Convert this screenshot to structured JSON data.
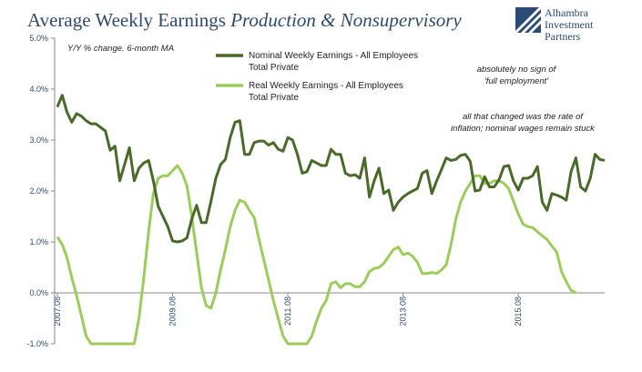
{
  "title": {
    "main": "Average Weekly Earnings ",
    "italic": "Production & Nonsupervisory"
  },
  "logo": {
    "line1": "Alhambra",
    "line2": "Investment",
    "line3": "Partners"
  },
  "notes": {
    "subtitle": "Y/Y % change. 6-month MA",
    "note1_line1": "absolutely no sign of",
    "note1_line2": "'full employment'",
    "note2_line1": "all that changed was the rate of",
    "note2_line2": "inflation; nominal wages remain stuck"
  },
  "colors": {
    "nominal": "#4a6a2a",
    "real": "#9ccd5c",
    "axis_text": "#2f4a6b",
    "logo": "#2b4a75"
  },
  "chart_data": {
    "type": "line",
    "ylim": [
      -1.0,
      5.0
    ],
    "yticks": [
      "5.0%",
      "4.0%",
      "3.0%",
      "2.0%",
      "1.0%",
      "0.0%",
      "-1.0%"
    ],
    "ytick_values": [
      5,
      4,
      3,
      2,
      1,
      0,
      -1
    ],
    "xticks": [
      "2007.08",
      "2009.08",
      "2011.08",
      "2013.08",
      "2015.08"
    ],
    "xtick_index": [
      0,
      24,
      48,
      72,
      96
    ],
    "grid": false,
    "legend_position": "top-center",
    "series": [
      {
        "name": "Nominal Weekly Earnings - All Employees Total Private",
        "values": [
          3.65,
          3.88,
          3.55,
          3.35,
          3.52,
          3.47,
          3.38,
          3.32,
          3.32,
          3.25,
          3.18,
          2.8,
          2.88,
          2.2,
          2.52,
          2.85,
          2.2,
          2.45,
          2.55,
          2.6,
          2.2,
          1.7,
          1.5,
          1.3,
          1.02,
          1.0,
          1.02,
          1.08,
          1.45,
          1.72,
          1.38,
          1.38,
          1.8,
          2.25,
          2.52,
          2.62,
          3.05,
          3.35,
          3.38,
          2.72,
          2.72,
          2.95,
          2.98,
          2.98,
          2.9,
          2.95,
          2.82,
          2.78,
          3.05,
          3.0,
          2.72,
          2.35,
          2.38,
          2.6,
          2.55,
          2.5,
          2.5,
          2.82,
          2.72,
          2.72,
          2.35,
          2.3,
          2.32,
          2.25,
          2.65,
          1.88,
          2.2,
          2.45,
          1.95,
          2.02,
          1.62,
          1.78,
          1.88,
          1.95,
          2.0,
          2.05,
          2.35,
          2.4,
          1.95,
          2.2,
          2.42,
          2.65,
          2.6,
          2.62,
          2.7,
          2.72,
          2.58,
          2.0,
          2.02,
          2.28,
          2.08,
          2.08,
          2.22,
          2.48,
          2.5,
          2.2,
          2.02,
          2.25,
          2.25,
          2.3,
          2.48,
          1.78,
          1.62,
          1.95,
          1.92,
          1.88,
          1.82,
          2.38,
          2.65,
          2.08,
          2.0,
          2.25,
          2.72,
          2.62,
          2.6
        ]
      },
      {
        "name": "Real Weekly Earnings - All Employees Total Private",
        "values": [
          1.1,
          0.95,
          0.7,
          0.3,
          -0.05,
          -0.45,
          -0.85,
          -1.0,
          -1.0,
          -1.0,
          -1.0,
          -1.0,
          -1.0,
          -1.0,
          -1.0,
          -1.0,
          -1.0,
          -0.5,
          0.3,
          1.2,
          1.95,
          2.25,
          2.3,
          2.3,
          2.4,
          2.5,
          2.35,
          2.1,
          1.5,
          0.8,
          0.1,
          -0.25,
          -0.3,
          0.0,
          0.45,
          0.85,
          1.3,
          1.62,
          1.82,
          1.78,
          1.62,
          1.48,
          1.05,
          0.65,
          0.25,
          -0.15,
          -0.5,
          -0.85,
          -1.0,
          -1.0,
          -1.0,
          -1.0,
          -1.0,
          -0.85,
          -0.55,
          -0.3,
          -0.15,
          0.18,
          0.22,
          0.1,
          0.18,
          0.18,
          0.12,
          0.12,
          0.22,
          0.42,
          0.48,
          0.5,
          0.58,
          0.72,
          0.85,
          0.9,
          0.75,
          0.78,
          0.72,
          0.6,
          0.38,
          0.38,
          0.4,
          0.38,
          0.45,
          0.55,
          0.95,
          1.45,
          1.78,
          2.0,
          2.15,
          2.3,
          2.3,
          2.15,
          2.15,
          2.2,
          2.2,
          2.15,
          2.05,
          1.8,
          1.55,
          1.35,
          1.3,
          1.28,
          1.2,
          1.12,
          1.05,
          0.92,
          0.8,
          0.42,
          0.22,
          0.05,
          0.0
        ]
      }
    ]
  }
}
